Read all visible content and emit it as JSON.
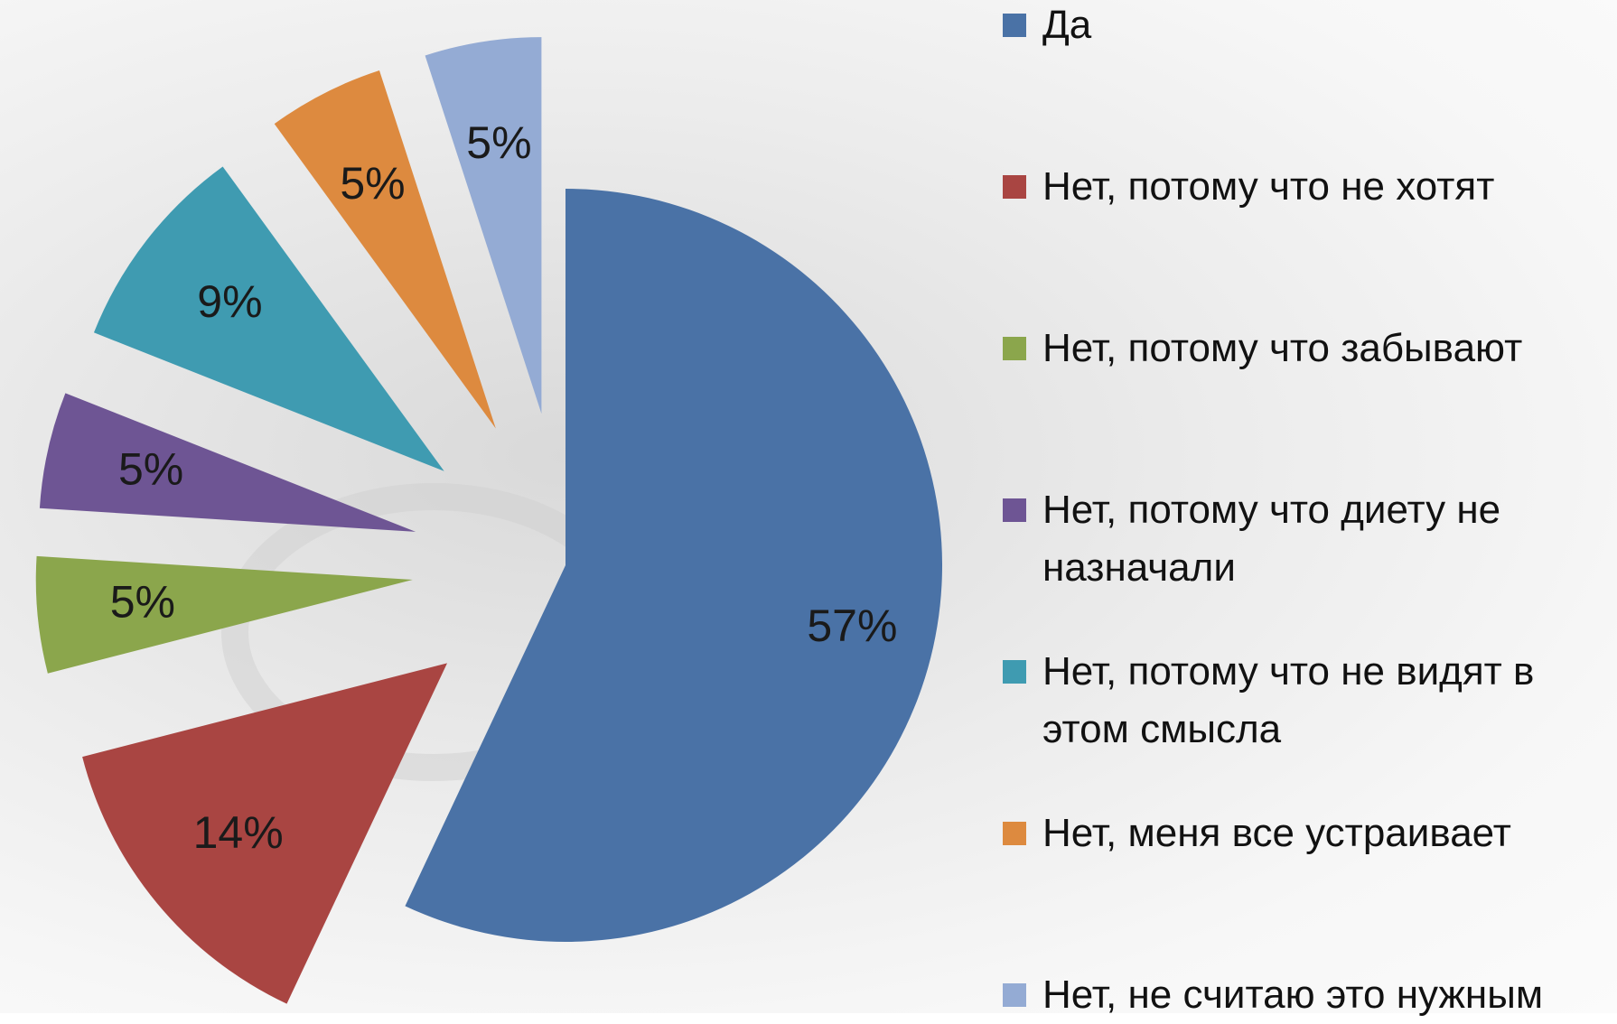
{
  "chart_data": {
    "type": "pie",
    "categories": [
      "Да",
      "Нет, потому что не хотят",
      "Нет, потому что забывают",
      "Нет, потому что диету не назначали",
      "Нет, потому что не видят в этом смысла",
      "Нет, меня все устраивает",
      "Нет, не считаю это нужным"
    ],
    "values": [
      57,
      14,
      5,
      5,
      9,
      5,
      5
    ],
    "value_labels": [
      "57%",
      "14%",
      "5%",
      "5%",
      "9%",
      "5%",
      "5%"
    ],
    "colors": [
      "#4a72a6",
      "#a94542",
      "#8ba64c",
      "#6e5594",
      "#3f9bb1",
      "#dd8a3f",
      "#94abd4"
    ],
    "legend": "right"
  }
}
